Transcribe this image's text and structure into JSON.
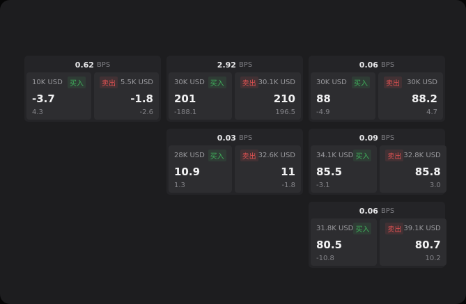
{
  "labels": {
    "unit": "BPS",
    "buy": "买入",
    "sell": "卖出"
  },
  "cards": [
    {
      "spread": "0.62",
      "buy_size": "10K USD",
      "sell_size": "5.5K USD",
      "buy_price": "-3.7",
      "sell_price": "-1.8",
      "buy_sub": "4.3",
      "sell_sub": "-2.6"
    },
    {
      "spread": "2.92",
      "buy_size": "30K USD",
      "sell_size": "30.1K USD",
      "buy_price": "201",
      "sell_price": "210",
      "buy_sub": "-188.1",
      "sell_sub": "196.5"
    },
    {
      "spread": "0.06",
      "buy_size": "30K USD",
      "sell_size": "30K USD",
      "buy_price": "88",
      "sell_price": "88.2",
      "buy_sub": "-4.9",
      "sell_sub": "4.7"
    },
    {
      "spread": "0.03",
      "buy_size": "28K USD",
      "sell_size": "32.6K USD",
      "buy_price": "10.9",
      "sell_price": "11",
      "buy_sub": "1.3",
      "sell_sub": "-1.8"
    },
    {
      "spread": "0.09",
      "buy_size": "34.1K USD",
      "sell_size": "32.8K USD",
      "buy_price": "85.5",
      "sell_price": "85.8",
      "buy_sub": "-3.1",
      "sell_sub": "3.0"
    },
    {
      "spread": "0.06",
      "buy_size": "31.8K USD",
      "sell_size": "39.1K USD",
      "buy_price": "80.5",
      "sell_price": "80.7",
      "buy_sub": "-10.8",
      "sell_sub": "10.2"
    }
  ]
}
